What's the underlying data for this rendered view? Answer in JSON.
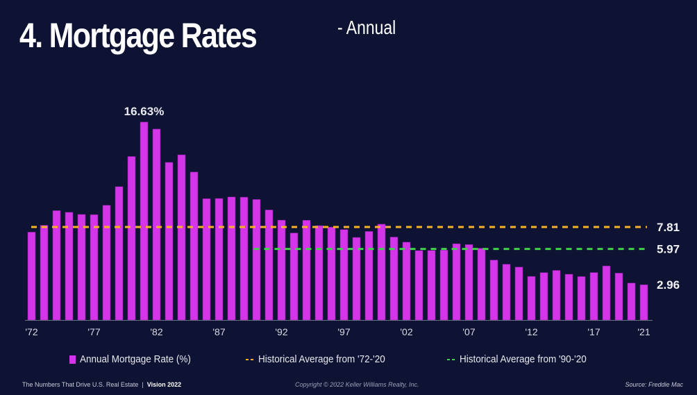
{
  "header": {
    "title": "4. Mortgage Rates",
    "subtitle": "- Annual"
  },
  "chart_data": {
    "type": "bar",
    "title": "4. Mortgage Rates - Annual",
    "xlabel": "",
    "ylabel": "",
    "ylim": [
      0,
      17
    ],
    "grid": false,
    "categories": [
      "1972",
      "1973",
      "1974",
      "1975",
      "1976",
      "1977",
      "1978",
      "1979",
      "1980",
      "1981",
      "1982",
      "1983",
      "1984",
      "1985",
      "1986",
      "1987",
      "1988",
      "1989",
      "1990",
      "1991",
      "1992",
      "1993",
      "1994",
      "1995",
      "1996",
      "1997",
      "1998",
      "1999",
      "2000",
      "2001",
      "2002",
      "2003",
      "2004",
      "2005",
      "2006",
      "2007",
      "2008",
      "2009",
      "2010",
      "2011",
      "2012",
      "2013",
      "2014",
      "2015",
      "2016",
      "2017",
      "2018",
      "2019",
      "2020",
      "2021"
    ],
    "tick_labels": [
      {
        "year": "1972",
        "label": "'72"
      },
      {
        "year": "1977",
        "label": "'77"
      },
      {
        "year": "1982",
        "label": "'82"
      },
      {
        "year": "1987",
        "label": "'87"
      },
      {
        "year": "1992",
        "label": "'92"
      },
      {
        "year": "1997",
        "label": "'97"
      },
      {
        "year": "2002",
        "label": "'02"
      },
      {
        "year": "2007",
        "label": "'07"
      },
      {
        "year": "2012",
        "label": "'12"
      },
      {
        "year": "2017",
        "label": "'17"
      },
      {
        "year": "2021",
        "label": "'21"
      }
    ],
    "series": [
      {
        "name": "Annual Mortgage Rate (%)",
        "color": "#d535e8",
        "values": [
          7.38,
          7.96,
          9.19,
          9.05,
          8.87,
          8.85,
          9.64,
          11.2,
          13.74,
          16.63,
          16.04,
          13.24,
          13.88,
          12.43,
          10.19,
          10.21,
          10.34,
          10.32,
          10.13,
          9.25,
          8.39,
          7.31,
          8.38,
          7.93,
          7.81,
          7.6,
          6.94,
          7.44,
          8.05,
          6.97,
          6.54,
          5.83,
          5.84,
          5.87,
          6.41,
          6.34,
          6.03,
          5.04,
          4.69,
          4.45,
          3.66,
          3.98,
          4.17,
          3.85,
          3.65,
          3.99,
          4.54,
          3.94,
          3.11,
          2.96
        ]
      }
    ],
    "reference_lines": [
      {
        "name": "Historical Average from '72-'20",
        "value": 7.81,
        "label": "7.81",
        "from": "1972",
        "to": "2021",
        "color": "#f9b224",
        "style": "dashed"
      },
      {
        "name": "Historical Average from '90-'20",
        "value": 5.97,
        "label": "5.97",
        "from": "1990",
        "to": "2021",
        "color": "#3fd14a",
        "style": "dashed"
      }
    ],
    "annotations": [
      {
        "text": "16.63%",
        "year": "1981"
      },
      {
        "text": "2.96",
        "year": "2021"
      }
    ],
    "legend": {
      "position": "bottom",
      "entries": [
        {
          "label": "Annual Mortgage Rate (%)",
          "kind": "swatch",
          "color": "#d535e8"
        },
        {
          "label": "Historical Average from '72-'20",
          "kind": "dash",
          "color": "#f9b224"
        },
        {
          "label": "Historical Average from '90-'20",
          "kind": "dash",
          "color": "#3fd14a"
        }
      ]
    }
  },
  "footer": {
    "left": "The Numbers That Drive U.S. Real Estate",
    "separator": "|",
    "left_bold": "Vision 2022",
    "center": "Copyright © 2022 Keller Williams Realty, Inc.",
    "right": "Source: Freddie Mac"
  }
}
